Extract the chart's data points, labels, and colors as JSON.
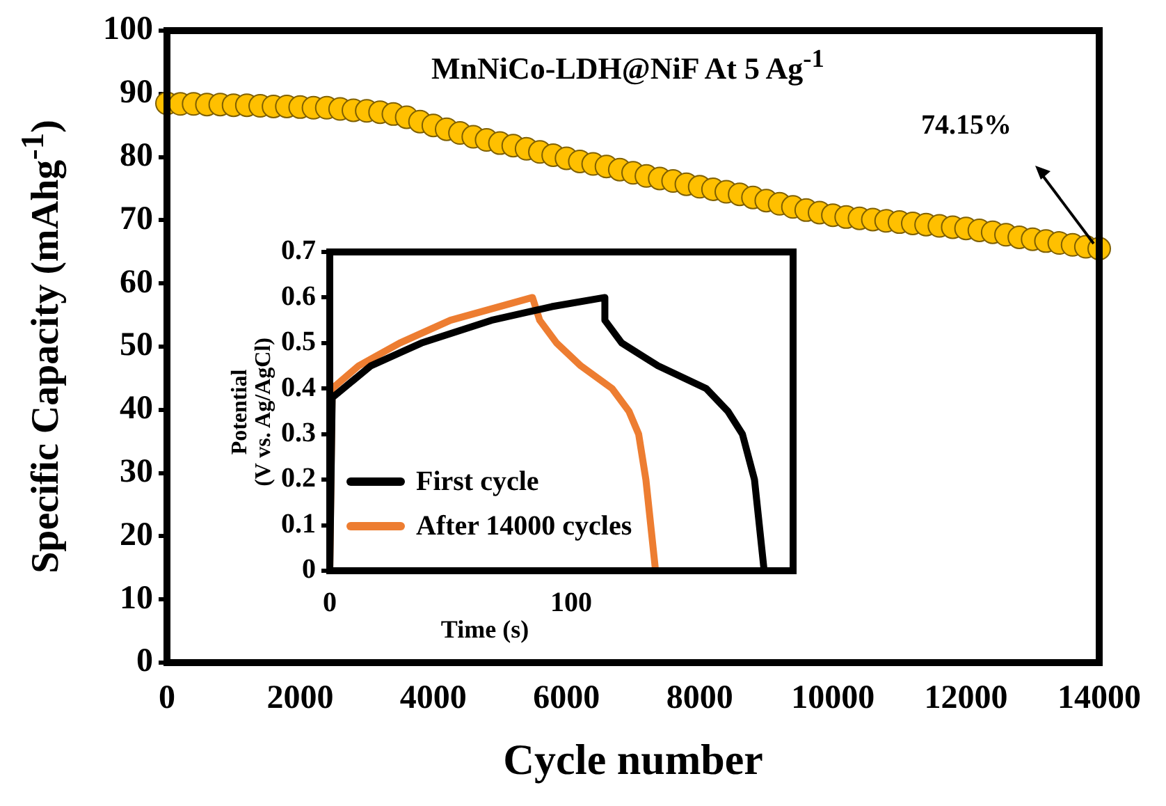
{
  "chart_data": [
    {
      "type": "scatter",
      "title": "MnNiCo-LDH@NiF  At 5 Ag$^{-1}$",
      "xlabel": "Cycle number",
      "ylabel": "Specific Capacity (mAhg$^{-1}$)",
      "marker": "circle",
      "grid": false,
      "x": [
        0,
        200,
        400,
        600,
        800,
        1000,
        1200,
        1400,
        1600,
        1800,
        2000,
        2200,
        2400,
        2600,
        2800,
        3000,
        3200,
        3400,
        3600,
        3800,
        4000,
        4200,
        4400,
        4600,
        4800,
        5000,
        5200,
        5400,
        5600,
        5800,
        6000,
        6200,
        6400,
        6600,
        6800,
        7000,
        7200,
        7400,
        7600,
        7800,
        8000,
        8200,
        8400,
        8600,
        8800,
        9000,
        9200,
        9400,
        9600,
        9800,
        10000,
        10200,
        10400,
        10600,
        10800,
        11000,
        11200,
        11400,
        11600,
        11800,
        12000,
        12200,
        12400,
        12600,
        12800,
        13000,
        13200,
        13400,
        13600,
        13800,
        14000
      ],
      "series": [
        {
          "color": "#ffc000",
          "values": [
            88.5,
            88.4,
            88.4,
            88.3,
            88.3,
            88.2,
            88.2,
            88.1,
            88.0,
            88.0,
            87.9,
            87.8,
            87.8,
            87.6,
            87.4,
            87.3,
            87.1,
            86.8,
            86.3,
            85.6,
            85.0,
            84.4,
            83.8,
            83.2,
            82.7,
            82.2,
            81.8,
            81.3,
            80.8,
            80.3,
            79.8,
            79.3,
            78.9,
            78.5,
            78.0,
            77.5,
            77.0,
            76.6,
            76.2,
            75.7,
            75.3,
            74.9,
            74.5,
            74.1,
            73.6,
            73.1,
            72.6,
            72.1,
            71.6,
            71.2,
            70.8,
            70.5,
            70.3,
            70.1,
            69.9,
            69.7,
            69.5,
            69.3,
            69.1,
            68.9,
            68.7,
            68.4,
            68.1,
            67.7,
            67.3,
            67.0,
            66.7,
            66.4,
            66.1,
            65.8,
            65.5
          ]
        }
      ],
      "xlim": [
        0,
        14000
      ],
      "xticks": [
        0,
        2000,
        4000,
        6000,
        8000,
        10000,
        12000,
        14000
      ],
      "ylim": [
        0,
        100
      ],
      "yticks": [
        0,
        10,
        20,
        30,
        40,
        50,
        60,
        70,
        80,
        90,
        100
      ],
      "annotations": [
        "74.15%"
      ]
    },
    {
      "type": "line",
      "xlabel": "Time (s)",
      "ylabel": "Potential\n(V vs. Ag/AgCl)",
      "legend": "bottom left",
      "grid": false,
      "marker": "none",
      "line_style": "solid",
      "series": [
        {
          "name": "First cycle",
          "color": "#000000",
          "x": [
            0,
            1,
            17,
            38,
            67,
            92,
            114,
            114,
            121,
            136,
            156,
            165,
            171,
            176,
            178,
            180
          ],
          "values": [
            0,
            0.38,
            0.45,
            0.5,
            0.55,
            0.58,
            0.6,
            0.55,
            0.5,
            0.45,
            0.4,
            0.35,
            0.3,
            0.2,
            0.1,
            0
          ]
        },
        {
          "name": "After 14000 cycles",
          "color": "#ed7d31",
          "x": [
            0,
            1,
            12,
            29,
            50,
            84,
            87,
            94,
            104,
            117,
            124,
            128,
            131,
            133,
            135
          ],
          "values": [
            0,
            0.4,
            0.45,
            0.5,
            0.55,
            0.6,
            0.55,
            0.5,
            0.45,
            0.4,
            0.35,
            0.3,
            0.2,
            0.1,
            0
          ]
        }
      ],
      "xlim": [
        0,
        192
      ],
      "xticks": [
        0,
        100
      ],
      "ylim": [
        0,
        0.7
      ],
      "yticks": [
        0,
        0.1,
        0.2,
        0.3,
        0.4,
        0.5,
        0.6,
        0.7
      ]
    }
  ]
}
